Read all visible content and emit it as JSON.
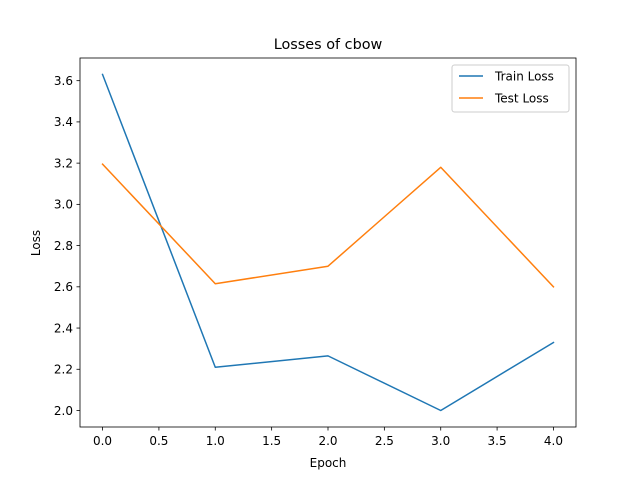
{
  "chart_data": {
    "type": "line",
    "title": "Losses of cbow",
    "xlabel": "Epoch",
    "ylabel": "Loss",
    "x": [
      0,
      1,
      2,
      3,
      4
    ],
    "xlim": [
      -0.2,
      4.2
    ],
    "ylim": [
      1.92,
      3.71
    ],
    "xticks": [
      "0.0",
      "0.5",
      "1.0",
      "1.5",
      "2.0",
      "2.5",
      "3.0",
      "3.5",
      "4.0"
    ],
    "yticks": [
      "2.0",
      "2.2",
      "2.4",
      "2.6",
      "2.8",
      "3.0",
      "3.2",
      "3.4",
      "3.6"
    ],
    "grid": false,
    "legend_position": "top-right",
    "series": [
      {
        "name": "Train Loss",
        "color": "#1f77b4",
        "values": [
          3.63,
          2.21,
          2.265,
          2.0,
          2.33
        ]
      },
      {
        "name": "Test Loss",
        "color": "#ff7f0e",
        "values": [
          3.195,
          2.615,
          2.7,
          3.18,
          2.6
        ]
      }
    ]
  }
}
